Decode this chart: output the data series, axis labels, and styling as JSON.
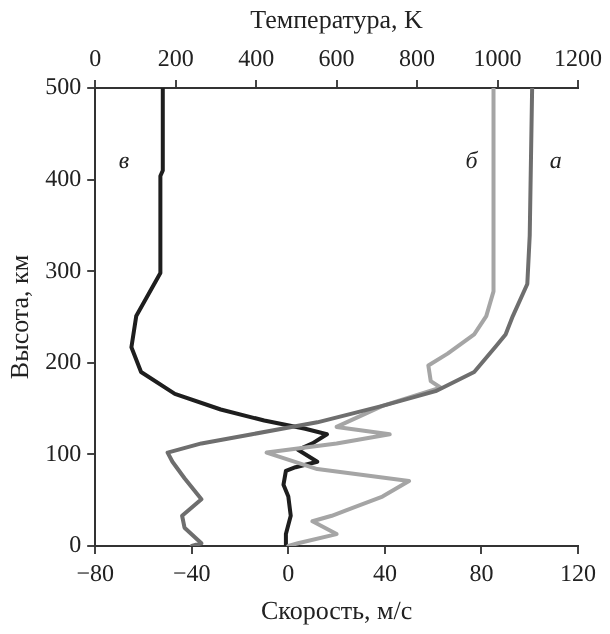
{
  "chart_data": {
    "type": "line",
    "xlabel": "Скорость, м/с",
    "ylabel": "Высота, км",
    "x2label": "Температура, K",
    "xlim": [
      -80,
      120
    ],
    "xticks": [
      -80,
      -40,
      0,
      40,
      80,
      120
    ],
    "x2lim": [
      0,
      1200
    ],
    "x2ticks": [
      0,
      200,
      400,
      600,
      800,
      1000,
      1200
    ],
    "ylim": [
      0,
      500
    ],
    "yticks": [
      0,
      100,
      200,
      300,
      400,
      500
    ],
    "grid": false,
    "legend": false,
    "marker": "none",
    "line_style": "solid",
    "series": [
      {
        "name": "а",
        "color": "#6e6e6e",
        "x": [
          -40,
          -36,
          -43,
          -44,
          -36,
          -43,
          -48,
          -50,
          -36,
          -15,
          12,
          39,
          61,
          77,
          86,
          90,
          93,
          99,
          100,
          101
        ],
        "values": [
          0,
          3,
          20,
          33,
          51,
          74,
          92,
          102,
          112,
          122,
          135,
          153,
          169,
          190,
          218,
          231,
          251,
          286,
          339,
          500
        ]
      },
      {
        "name": "б",
        "color": "#a5a5a5",
        "x": [
          0,
          4,
          20,
          10,
          18,
          39,
          50,
          12,
          -9,
          20,
          42,
          20,
          39,
          63,
          59,
          58,
          66,
          77,
          82,
          85,
          85
        ],
        "values": [
          0,
          3,
          13,
          27,
          33,
          54,
          71,
          84,
          102,
          112,
          122,
          130,
          153,
          173,
          180,
          197,
          210,
          231,
          251,
          278,
          500
        ]
      },
      {
        "name": "в",
        "color": "#1e1e1e",
        "x": [
          -1,
          -1,
          1,
          0,
          -2,
          -1,
          3,
          12,
          4,
          10,
          16,
          7,
          -10,
          -28,
          -47,
          -61,
          -65,
          -63,
          -53,
          -53,
          -52,
          -52
        ],
        "values": [
          0,
          13,
          33,
          54,
          67,
          82,
          86,
          92,
          105,
          112,
          122,
          128,
          137,
          149,
          166,
          190,
          217,
          251,
          298,
          404,
          410,
          500
        ]
      }
    ]
  }
}
